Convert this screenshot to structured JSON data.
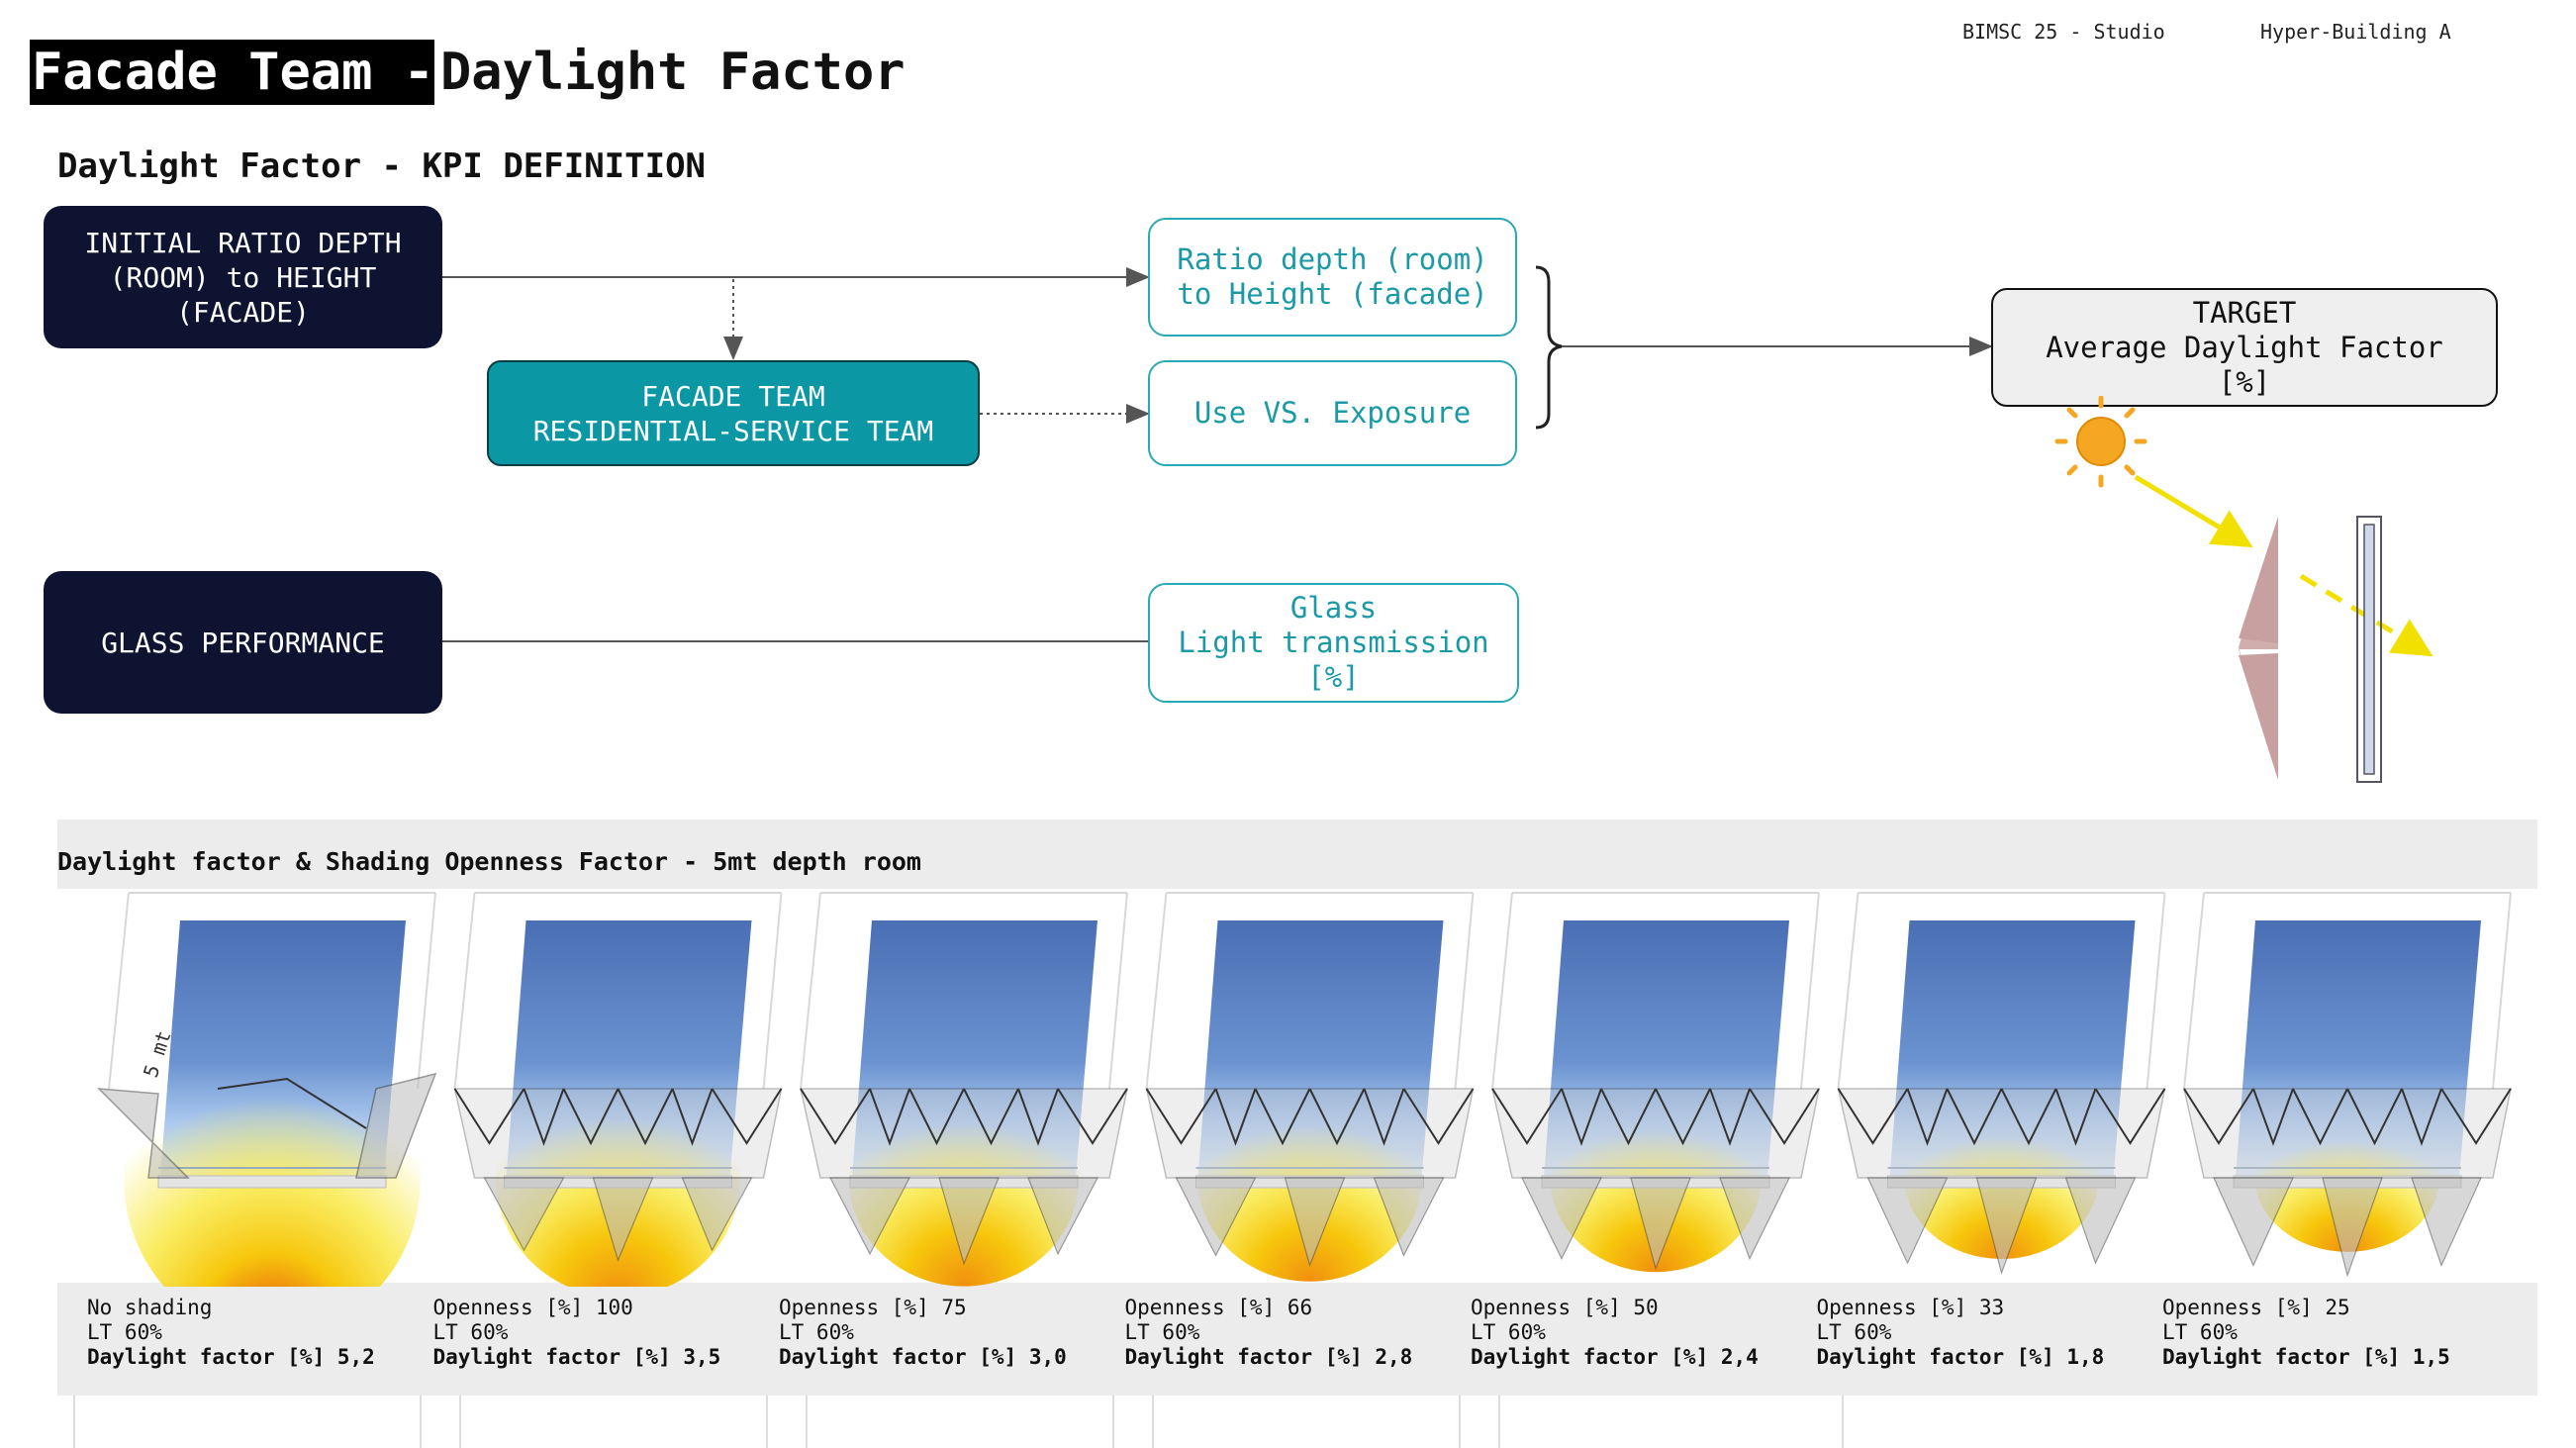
{
  "header": {
    "course": "BIMSC 25 - Studio",
    "project": "Hyper-Building A"
  },
  "title": {
    "highlight": "Facade Team -",
    "rest": "Daylight Factor"
  },
  "subtitle": "Daylight Factor - KPI DEFINITION",
  "diagram": {
    "initial_ratio": "INITIAL RATIO DEPTH\n(ROOM) to HEIGHT\n(FACADE)",
    "teams": "FACADE TEAM\nRESIDENTIAL-SERVICE TEAM",
    "glass_performance": "GLASS PERFORMANCE",
    "ratio_box": "Ratio depth (room)\nto Height (facade)",
    "use_box": "Use VS. Exposure",
    "glass_box": "Glass\nLight transmission\n[%]",
    "target": "TARGET\nAverage Daylight Factor\n[%]"
  },
  "colors": {
    "dark_box": "#0d1330",
    "teal_box": "#0b97a4",
    "outline_text": "#1a9aa6",
    "sun": "#f5a623",
    "arrow": "#f5e300",
    "shade": "#c9a0a0"
  },
  "section": {
    "title": "Daylight factor & Shading Openness Factor - 5mt depth room",
    "room_depth_label": "5 mt"
  },
  "studies": [
    {
      "line1": "No shading",
      "line2": "LT 60%",
      "df_label": "Daylight factor [%]",
      "df": "5,2",
      "intensity": 1.0,
      "folds": 0
    },
    {
      "line1": "Openness [%] 100",
      "line2": "LT 60%",
      "df_label": "Daylight factor [%]",
      "df": "3,5",
      "intensity": 0.67,
      "folds": 3
    },
    {
      "line1": "Openness [%] 75",
      "line2": "LT 60%",
      "df_label": "Daylight factor [%]",
      "df": "3,0",
      "intensity": 0.58,
      "folds": 3
    },
    {
      "line1": "Openness [%] 66",
      "line2": "LT 60%",
      "df_label": "Daylight factor [%]",
      "df": "2,8",
      "intensity": 0.54,
      "folds": 3
    },
    {
      "line1": "Openness [%] 50",
      "line2": "LT 60%",
      "df_label": "Daylight factor [%]",
      "df": "2,4",
      "intensity": 0.46,
      "folds": 3
    },
    {
      "line1": "Openness [%] 33",
      "line2": "LT 60%",
      "df_label": "Daylight factor [%]",
      "df": "1,8",
      "intensity": 0.35,
      "folds": 3
    },
    {
      "line1": "Openness [%] 25",
      "line2": "LT 60%",
      "df_label": "Daylight factor [%]",
      "df": "1,5",
      "intensity": 0.29,
      "folds": 3
    }
  ]
}
